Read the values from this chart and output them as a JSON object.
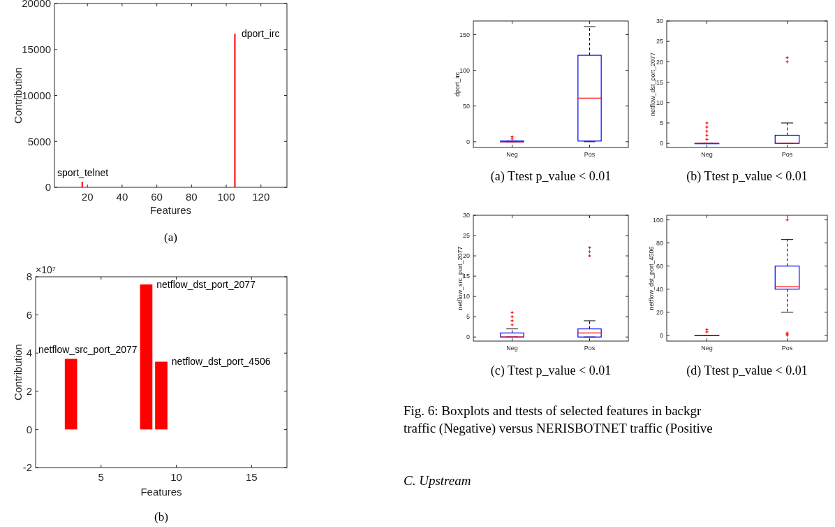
{
  "chart_data": [
    {
      "type": "bar",
      "title": "(a)",
      "xlabel": "Features",
      "ylabel": "Contribution",
      "color": "#ff0000",
      "x": [
        1,
        2,
        3,
        4,
        5,
        6,
        7,
        8,
        9,
        10,
        11,
        12,
        13,
        14,
        15,
        16,
        17,
        18,
        19,
        20,
        21,
        22,
        23,
        24,
        25,
        26,
        27,
        28,
        29,
        30,
        31,
        32,
        33,
        34,
        35,
        36,
        37,
        38,
        39,
        40,
        41,
        42,
        43,
        44,
        45,
        46,
        47,
        48,
        49,
        50,
        51,
        52,
        53,
        54,
        55,
        56,
        57,
        58,
        59,
        60,
        61,
        62,
        63,
        64,
        65,
        66,
        67,
        68,
        69,
        70,
        71,
        72,
        73,
        74,
        75,
        76,
        77,
        78,
        79,
        80,
        81,
        82,
        83,
        84,
        85,
        86,
        87,
        88,
        89,
        90,
        91,
        92,
        93,
        94,
        95,
        96,
        97,
        98,
        99,
        100,
        101,
        102,
        103,
        104,
        105,
        106,
        107,
        108,
        109,
        110,
        111,
        112,
        113,
        114,
        115,
        116,
        117,
        118,
        119,
        120,
        121,
        122,
        123,
        124,
        125,
        126,
        127,
        128,
        129,
        130,
        131,
        132,
        133,
        134,
        135
      ],
      "values": [
        0,
        0,
        0,
        0,
        0,
        0,
        0,
        0,
        0,
        0,
        0,
        0,
        0,
        0,
        0,
        0,
        600,
        0,
        0,
        0,
        0,
        0,
        0,
        0,
        0,
        0,
        0,
        0,
        0,
        0,
        0,
        0,
        0,
        0,
        0,
        0,
        0,
        0,
        0,
        0,
        0,
        0,
        0,
        0,
        0,
        0,
        0,
        0,
        0,
        0,
        0,
        0,
        0,
        0,
        0,
        0,
        0,
        0,
        0,
        0,
        0,
        0,
        0,
        0,
        0,
        0,
        0,
        0,
        0,
        0,
        0,
        0,
        0,
        0,
        0,
        0,
        0,
        0,
        0,
        0,
        0,
        0,
        0,
        0,
        0,
        0,
        0,
        0,
        0,
        0,
        0,
        0,
        0,
        0,
        0,
        0,
        0,
        0,
        0,
        0,
        0,
        0,
        0,
        0,
        16700,
        0,
        0,
        0,
        0,
        0,
        0,
        0,
        0,
        0,
        0,
        0,
        0,
        0,
        0,
        0,
        0,
        0,
        0,
        0,
        0,
        0,
        0,
        0,
        0,
        0,
        0,
        0,
        0,
        0,
        0
      ],
      "xlim": [
        1,
        135
      ],
      "xticks": [
        20,
        40,
        60,
        80,
        100,
        120
      ],
      "ylim": [
        0,
        20000
      ],
      "yticks": [
        0,
        5000,
        10000,
        15000,
        20000
      ],
      "annotations": [
        {
          "text": "dport_irc",
          "x": 106,
          "y": 16700
        },
        {
          "text": "sport_telnet",
          "x": 18,
          "y": 600
        }
      ]
    },
    {
      "type": "bar",
      "title": "(b)",
      "xlabel": "Features",
      "ylabel": "Contribution",
      "color": "#ff0000",
      "x": [
        1,
        2,
        3,
        4,
        5,
        6,
        7,
        8,
        9,
        10,
        11,
        12,
        13,
        14,
        15,
        16,
        17
      ],
      "values": [
        0,
        0,
        3.7,
        0,
        0,
        0,
        0,
        7.6,
        3.55,
        0,
        0,
        0,
        0,
        0,
        0,
        0,
        0
      ],
      "xlim": [
        0.65,
        17.35
      ],
      "xticks": [
        5,
        10,
        15
      ],
      "ylim": [
        -2,
        8
      ],
      "yticks": [
        -2,
        0,
        2,
        4,
        6,
        8
      ],
      "annotations": [
        "×10⁷",
        {
          "text": "netflow_src_port_2077",
          "x": 3,
          "y": 3.7
        },
        {
          "text": "netflow_dst_port_2077",
          "x": 8,
          "y": 7.6
        },
        {
          "text": "netflow_dst_port_4506",
          "x": 9,
          "y": 3.55
        }
      ]
    },
    {
      "type": "box",
      "title": "(a) Ttest p_value < 0.01",
      "ylabel": "dport_irc",
      "categories": [
        "Neg",
        "Pos"
      ],
      "ylim": [
        -8,
        169
      ],
      "yticks": [
        0,
        50,
        100,
        150
      ],
      "series": [
        {
          "color": "#0000ff",
          "boxes": [
            {
              "low": 0,
              "q1": 0,
              "median": 0,
              "q3": 1,
              "high": 1,
              "outliers": [
                4,
                7
              ]
            },
            {
              "low": 0,
              "q1": 1,
              "median": 61,
              "q3": 121,
              "high": 161
            }
          ]
        }
      ]
    },
    {
      "type": "box",
      "title": "(b) Ttest p_value < 0.01",
      "ylabel": "netflow_dst_port_2077",
      "categories": [
        "Neg",
        "Pos"
      ],
      "ylim": [
        -1,
        30
      ],
      "yticks": [
        0,
        5,
        10,
        15,
        20,
        25,
        30
      ],
      "series": [
        {
          "color": "#0000ff",
          "boxes": [
            {
              "low": 0,
              "q1": 0,
              "median": 0,
              "q3": 0,
              "high": 0,
              "outliers": [
                1,
                2,
                3,
                4,
                5
              ]
            },
            {
              "low": 0,
              "q1": 0,
              "median": 0,
              "q3": 2,
              "high": 5,
              "outliers": [
                20,
                21
              ]
            }
          ]
        }
      ]
    },
    {
      "type": "box",
      "title": "(c) Ttest p_value < 0.01",
      "ylabel": "netflow_src_port_2077",
      "categories": [
        "Neg",
        "Pos"
      ],
      "ylim": [
        -1,
        30
      ],
      "yticks": [
        0,
        5,
        10,
        15,
        20,
        25,
        30
      ],
      "series": [
        {
          "color": "#0000ff",
          "boxes": [
            {
              "low": 0,
              "q1": 0,
              "median": 0,
              "q3": 1,
              "high": 2,
              "outliers": [
                3,
                4,
                5,
                6
              ]
            },
            {
              "low": 0,
              "q1": 0,
              "median": 1,
              "q3": 2,
              "high": 4,
              "outliers": [
                20,
                21,
                22
              ]
            }
          ]
        }
      ]
    },
    {
      "type": "box",
      "title": "(d) Ttest p_value < 0.01",
      "ylabel": "netflow_dst_port_4506",
      "categories": [
        "Neg",
        "Pos"
      ],
      "ylim": [
        -5,
        104
      ],
      "yticks": [
        0,
        20,
        40,
        60,
        80,
        100
      ],
      "series": [
        {
          "color": "#0000ff",
          "boxes": [
            {
              "low": 0,
              "q1": 0,
              "median": 0,
              "q3": 0,
              "high": 0,
              "outliers": [
                3,
                5
              ]
            },
            {
              "low": 20,
              "q1": 40,
              "median": 42,
              "q3": 60,
              "high": 83,
              "outliers": [
                0,
                1,
                2,
                100
              ]
            }
          ]
        }
      ]
    },
    {
      "type": "other",
      "annotations": [
        "Fig. 6: Boxplots and ttests of selected features in backgr",
        "traffic (Negative) versus NERISBOTNET traffic (Positive",
        "C. Upstream"
      ]
    }
  ]
}
